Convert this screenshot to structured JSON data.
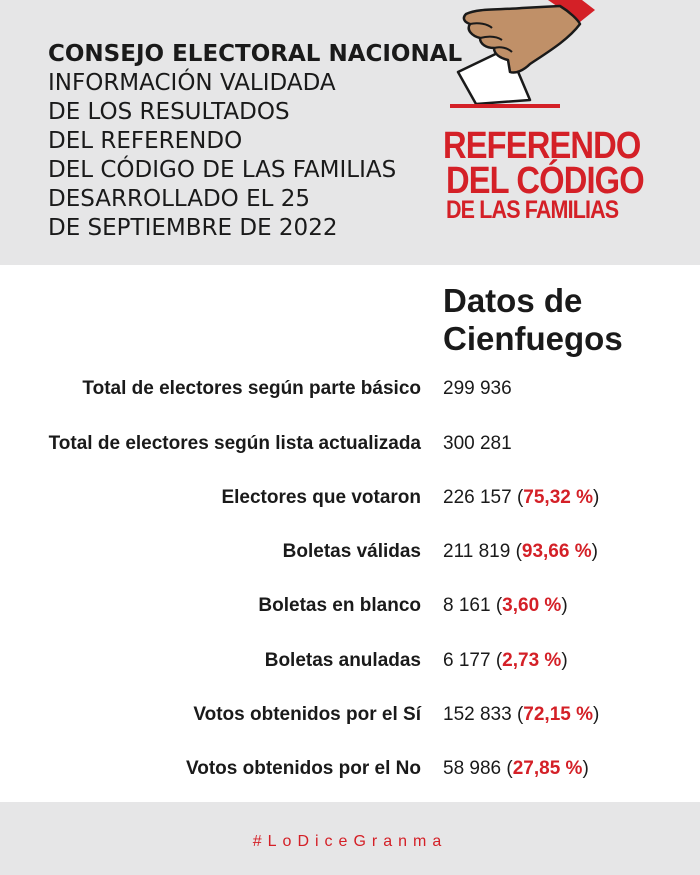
{
  "header": {
    "organization": "CONSEJO ELECTORAL NACIONAL",
    "lines": [
      "INFORMACIÓN VALIDADA",
      "DE LOS RESULTADOS",
      "DEL REFERENDO",
      "DEL CÓDIGO DE LAS FAMILIAS",
      "DESARROLLADO EL 25",
      "DE SEPTIEMBRE DE 2022"
    ]
  },
  "logo": {
    "line1": "REFERENDO",
    "line2": "DEL CÓDIGO",
    "line3": "DE LAS FAMILIAS",
    "icon": "hand-casting-ballot-icon",
    "color": "#d42027"
  },
  "section": {
    "title_line1": "Datos de",
    "title_line2": "Cienfuegos"
  },
  "rows": [
    {
      "label": "Total de electores según parte básico",
      "value": "299 936",
      "pct_open": "",
      "pct": "",
      "pct_close": ""
    },
    {
      "label": "Total de electores según lista actualizada",
      "value": "300 281",
      "pct_open": "",
      "pct": "",
      "pct_close": ""
    },
    {
      "label": "Electores que votaron",
      "value": "226 157 ",
      "pct_open": "(",
      "pct": "75,32 %",
      "pct_close": ")"
    },
    {
      "label": "Boletas válidas",
      "value": "211 819 ",
      "pct_open": "(",
      "pct": "93,66 %",
      "pct_close": ")"
    },
    {
      "label": "Boletas en blanco",
      "value": "8 161 ",
      "pct_open": "(",
      "pct": "3,60 %",
      "pct_close": ")"
    },
    {
      "label": "Boletas anuladas",
      "value": "6 177 ",
      "pct_open": "(",
      "pct": "2,73 %",
      "pct_close": ")"
    },
    {
      "label": "Votos obtenidos por el Sí",
      "value": "152 833 ",
      "pct_open": "(",
      "pct": "72,15 %",
      "pct_close": ")"
    },
    {
      "label": "Votos obtenidos por el No",
      "value": "58 986 ",
      "pct_open": "(",
      "pct": "27,85 %",
      "pct_close": ")"
    }
  ],
  "footer": {
    "hashtag": "#LoDiceGranma"
  },
  "colors": {
    "accent": "#d42027",
    "panel": "#e6e6e7",
    "skin": "#c09068"
  }
}
